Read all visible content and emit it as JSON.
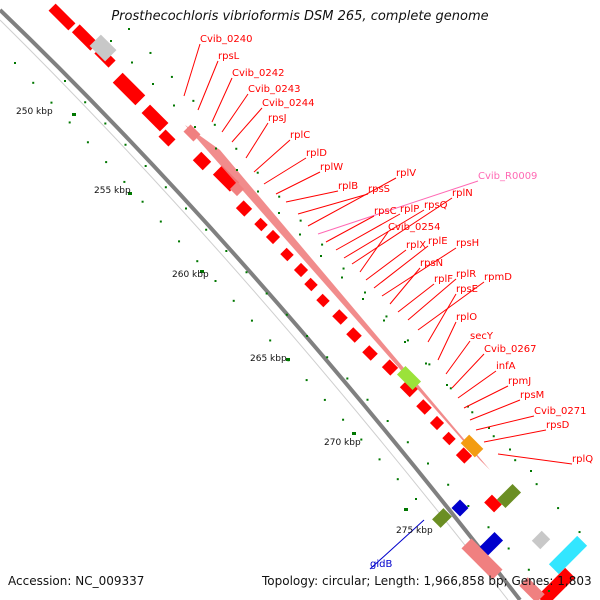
{
  "title": "Prosthecochloris vibrioformis DSM 265, complete genome",
  "footer": {
    "accession": "Accession: NC_009337",
    "topology": "Topology: circular; Length: 1,966,858 bp; Genes: 1,803"
  },
  "colors": {
    "gene_dark": "#ff0000",
    "gene_light": "#f08080",
    "rna": "#ff69b4",
    "gidB": "#0000cc",
    "tick": "#007700",
    "backbone": "#808080"
  },
  "ticks": [
    "250 kbp",
    "255 kbp",
    "260 kbp",
    "265 kbp",
    "270 kbp",
    "275 kbp"
  ],
  "gene_labels": [
    "Cvib_0240",
    "rpsL",
    "Cvib_0242",
    "Cvib_0243",
    "Cvib_0244",
    "rpsJ",
    "rplC",
    "rplD",
    "rplW",
    "rplB",
    "rpsS",
    "rplV",
    "Cvib_R0009",
    "rpsC",
    "rplP",
    "rpsQ",
    "rplN",
    "Cvib_0254",
    "rplX",
    "rplE",
    "rpsH",
    "rpsN",
    "rplF",
    "rplR",
    "rpmD",
    "rpsE",
    "rplO",
    "secY",
    "Cvib_0267",
    "infA",
    "rpmJ",
    "rpsM",
    "Cvib_0271",
    "rpsD",
    "rplQ",
    "gidB"
  ]
}
